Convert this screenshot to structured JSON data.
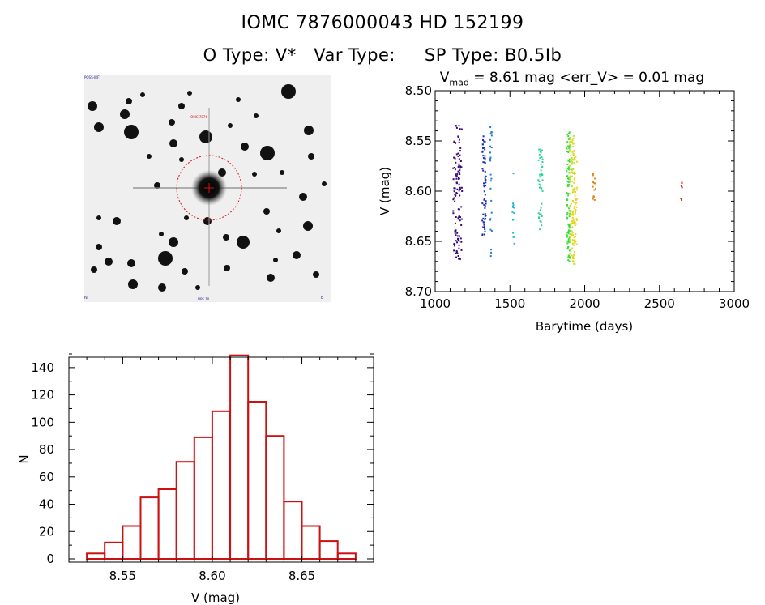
{
  "header": {
    "title_line1": "IOMC 7876000043    HD 152199",
    "o_type": "O Type: V*",
    "var_type": "Var Type:",
    "sp_type": "SP Type: B0.5Ib"
  },
  "finder_image": {
    "label_top_left": "POSS-II(F)",
    "label_target": "IOMC 7876",
    "label_bottom_center": "NPS 10",
    "label_bottom_left": "N",
    "label_bottom_right": "E"
  },
  "stats": {
    "v_prefix": "V",
    "v_sub": "mad",
    "v_text": "= 8.61 mag <err_V> = 0.01 mag"
  },
  "chart_data": [
    {
      "type": "scatter",
      "title": "",
      "xlabel": "Barytime (days)",
      "ylabel": "V (mag)",
      "xlim": [
        1000,
        3000
      ],
      "ylim": [
        8.7,
        8.5
      ],
      "y_inverted": true,
      "xticks": [
        "1000",
        "1500",
        "2000",
        "2500",
        "3000"
      ],
      "yticks": [
        "8.50",
        "8.55",
        "8.60",
        "8.65",
        "8.70"
      ],
      "series": [
        {
          "x_range": [
            1120,
            1180
          ],
          "v_range": [
            8.534,
            8.668
          ],
          "count": 120,
          "color": "#3a0a7a"
        },
        {
          "x_range": [
            1315,
            1340
          ],
          "v_range": [
            8.545,
            8.645
          ],
          "count": 60,
          "color": "#1f2fb5"
        },
        {
          "x_range": [
            1368,
            1380
          ],
          "v_range": [
            8.53,
            8.67
          ],
          "count": 25,
          "color": "#1f7fd4"
        },
        {
          "x_range": [
            1515,
            1530
          ],
          "v_range": [
            8.58,
            8.655
          ],
          "count": 15,
          "color": "#20b8d8"
        },
        {
          "x_range": [
            1690,
            1720
          ],
          "v_range": [
            8.558,
            8.64
          ],
          "count": 45,
          "color": "#2ad3a0"
        },
        {
          "x_range": [
            1880,
            1900
          ],
          "v_range": [
            8.54,
            8.67
          ],
          "count": 90,
          "color": "#3ddc40"
        },
        {
          "x_range": [
            1900,
            1935
          ],
          "v_range": [
            8.545,
            8.678
          ],
          "count": 110,
          "color": "#c8e020"
        },
        {
          "x_range": [
            1920,
            1950
          ],
          "v_range": [
            8.56,
            8.67
          ],
          "count": 50,
          "color": "#f5d020"
        },
        {
          "x_range": [
            2055,
            2075
          ],
          "v_range": [
            8.58,
            8.61
          ],
          "count": 14,
          "color": "#e08a20"
        },
        {
          "x_range": [
            2640,
            2655
          ],
          "v_range": [
            8.59,
            8.612
          ],
          "count": 6,
          "color": "#c82818"
        }
      ]
    },
    {
      "type": "bar",
      "title": "",
      "xlabel": "V (mag)",
      "ylabel": "N",
      "xlim": [
        8.52,
        8.69
      ],
      "ylim": [
        0,
        150
      ],
      "xticks": [
        "8.55",
        "8.60",
        "8.65"
      ],
      "yticks": [
        "0",
        "20",
        "40",
        "60",
        "80",
        "100",
        "120",
        "140"
      ],
      "bin_width": 0.01,
      "bin_starts": [
        8.53,
        8.54,
        8.55,
        8.56,
        8.57,
        8.58,
        8.59,
        8.6,
        8.61,
        8.62,
        8.63,
        8.64,
        8.65,
        8.66,
        8.67
      ],
      "values": [
        4,
        12,
        24,
        45,
        51,
        71,
        89,
        108,
        149,
        115,
        90,
        42,
        24,
        13,
        4
      ],
      "color": "#cc1111"
    }
  ]
}
